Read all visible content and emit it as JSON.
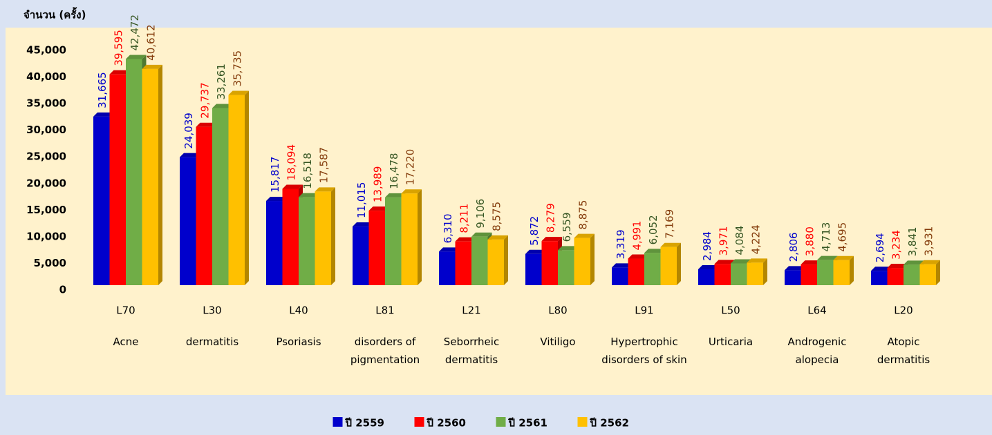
{
  "chart_data": {
    "type": "bar",
    "y_axis_label": "จำนวน (ครั้ง)",
    "categories": [
      "L70",
      "L30",
      "L40",
      "L81",
      "L21",
      "L80",
      "L91",
      "L50",
      "L64",
      "L20"
    ],
    "category_names": [
      "Acne",
      "dermatitis",
      "Psoriasis",
      "disorders of pigmentation",
      "Seborrheic dermatitis",
      "Vitiligo",
      "Hypertrophic disorders of skin",
      "Urticaria",
      "Androgenic alopecia",
      "Atopic dermatitis"
    ],
    "series": [
      {
        "name": "ปี 2559",
        "color": "#0000cc",
        "label_color": "#0000cc",
        "values": [
          31665,
          24039,
          15817,
          11015,
          6310,
          5872,
          3319,
          2984,
          2806,
          2694
        ],
        "value_labels": [
          "31,665",
          "24,039",
          "15,817",
          "11,015",
          "6,310",
          "5,872",
          "3,319",
          "2,984",
          "2,806",
          "2,694"
        ]
      },
      {
        "name": "ปี 2560",
        "color": "#ff0000",
        "label_color": "#ff0000",
        "values": [
          39595,
          29737,
          18094,
          13989,
          8211,
          8279,
          4991,
          3971,
          3880,
          3234
        ],
        "value_labels": [
          "39,595",
          "29,737",
          "18,094",
          "13,989",
          "8,211",
          "8,279",
          "4,991",
          "3,971",
          "3,880",
          "3,234"
        ]
      },
      {
        "name": "ปี 2561",
        "color": "#70ad47",
        "label_color": "#375623",
        "values": [
          42472,
          33261,
          16518,
          16478,
          9106,
          6559,
          6052,
          4084,
          4713,
          3841
        ],
        "value_labels": [
          "42,472",
          "33,261",
          "16,518",
          "16,478",
          "9,106",
          "6,559",
          "6,052",
          "4,084",
          "4,713",
          "3,841"
        ]
      },
      {
        "name": "ปี 2562",
        "color": "#ffc000",
        "label_color": "#843c0c",
        "values": [
          40612,
          35735,
          17587,
          17220,
          8575,
          8875,
          7169,
          4224,
          4695,
          3931
        ],
        "value_labels": [
          "40,612",
          "35,735",
          "17,587",
          "17,220",
          "8,575",
          "8,875",
          "7,169",
          "4,224",
          "4,695",
          "3,931"
        ]
      }
    ],
    "ylim": [
      0,
      45000
    ],
    "yticks": [
      0,
      {
        "value": 5000,
        "label": "5,000"
      },
      {
        "value": 10000,
        "label": "10,000"
      },
      {
        "value": 15000,
        "label": "15,000"
      },
      {
        "value": 20000,
        "label": "20,000"
      },
      {
        "value": 25000,
        "label": "25,000"
      },
      {
        "value": 30000,
        "label": "30,000"
      },
      {
        "value": 35000,
        "label": "35,000"
      },
      {
        "value": 40000,
        "label": "40,000"
      },
      {
        "value": 45000,
        "label": "45,000"
      }
    ],
    "grid": false,
    "legend": "bottom"
  }
}
